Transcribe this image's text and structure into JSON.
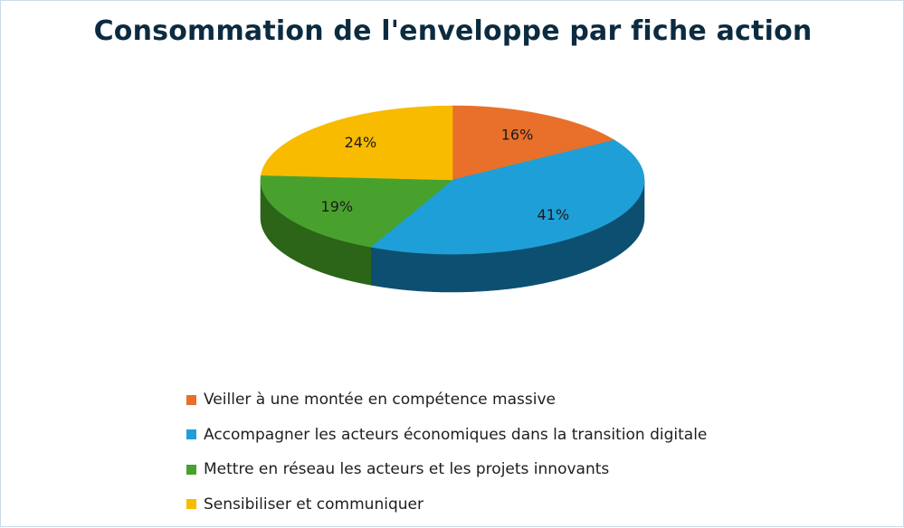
{
  "chart_data": {
    "type": "pie",
    "variant": "3d",
    "title": "Consommation de l'enveloppe par fiche action",
    "categories": [
      "Veiller à une montée en compétence massive",
      "Accompagner les acteurs économiques dans la transition digitale",
      "Mettre en réseau les acteurs et les projets innovants",
      "Sensibiliser et communiquer"
    ],
    "values": [
      16,
      41,
      19,
      24
    ],
    "data_labels": [
      "16%",
      "41%",
      "19%",
      "24%"
    ],
    "colors": [
      "#e8702a",
      "#1f9fd8",
      "#48a12c",
      "#f8bb00"
    ],
    "side_colors": [
      "#a54a18",
      "#0d4f70",
      "#2c6418",
      "#9a7200"
    ],
    "legend_position": "bottom"
  }
}
